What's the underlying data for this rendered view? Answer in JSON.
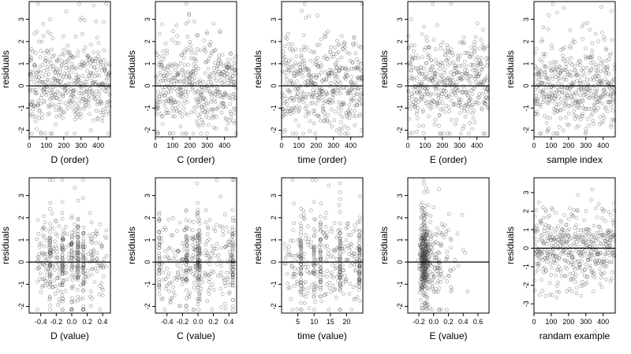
{
  "colors": {
    "point_stroke": "#444444",
    "frame": "#000000",
    "background": "#ffffff"
  },
  "chart_data": [
    {
      "type": "scatter",
      "xlabel": "D (order)",
      "ylabel": "residuals",
      "xlim": [
        0,
        470
      ],
      "ylim": [
        -2.3,
        3.8
      ],
      "xticks": [
        0,
        100,
        200,
        300,
        400
      ],
      "xticklabels": [
        "0",
        "100",
        "200",
        "300",
        "400"
      ],
      "yticks": [
        -2,
        -1,
        0,
        1,
        2,
        3
      ],
      "refline_y": 0,
      "pattern": {
        "kind": "order",
        "n": 470,
        "seed": 11
      }
    },
    {
      "type": "scatter",
      "xlabel": "C (order)",
      "ylabel": "residuals",
      "xlim": [
        0,
        470
      ],
      "ylim": [
        -2.3,
        3.8
      ],
      "xticks": [
        0,
        100,
        200,
        300,
        400
      ],
      "xticklabels": [
        "0",
        "100",
        "200",
        "300",
        "400"
      ],
      "yticks": [
        -2,
        -1,
        0,
        1,
        2,
        3
      ],
      "refline_y": 0,
      "pattern": {
        "kind": "order",
        "n": 470,
        "seed": 23
      }
    },
    {
      "type": "scatter",
      "xlabel": "time (order)",
      "ylabel": "residuals",
      "xlim": [
        0,
        470
      ],
      "ylim": [
        -2.3,
        3.8
      ],
      "xticks": [
        0,
        100,
        200,
        300,
        400
      ],
      "xticklabels": [
        "0",
        "100",
        "200",
        "300",
        "400"
      ],
      "yticks": [
        -2,
        -1,
        0,
        1,
        2,
        3
      ],
      "refline_y": 0,
      "pattern": {
        "kind": "order",
        "n": 470,
        "seed": 37
      }
    },
    {
      "type": "scatter",
      "xlabel": "E (order)",
      "ylabel": "residuals",
      "xlim": [
        0,
        470
      ],
      "ylim": [
        -2.3,
        3.8
      ],
      "xticks": [
        0,
        100,
        200,
        300,
        400
      ],
      "xticklabels": [
        "0",
        "100",
        "200",
        "300",
        "400"
      ],
      "yticks": [
        -2,
        -1,
        0,
        1,
        2,
        3
      ],
      "refline_y": 0,
      "pattern": {
        "kind": "order",
        "n": 470,
        "seed": 41
      }
    },
    {
      "type": "scatter",
      "xlabel": "sample index",
      "ylabel": "residuals",
      "xlim": [
        0,
        470
      ],
      "ylim": [
        -2.3,
        3.8
      ],
      "xticks": [
        0,
        100,
        200,
        300,
        400
      ],
      "xticklabels": [
        "0",
        "100",
        "200",
        "300",
        "400"
      ],
      "yticks": [
        -2,
        -1,
        0,
        1,
        2,
        3
      ],
      "refline_y": 0,
      "pattern": {
        "kind": "order",
        "n": 470,
        "seed": 53
      }
    },
    {
      "type": "scatter",
      "xlabel": "D (value)",
      "ylabel": "residuals",
      "xlim": [
        -0.55,
        0.5
      ],
      "ylim": [
        -2.3,
        3.8
      ],
      "xticks": [
        -0.4,
        -0.2,
        0.0,
        0.2,
        0.4
      ],
      "xticklabels": [
        "-0.4",
        "-0.2",
        "0.0",
        "0.2",
        "0.4"
      ],
      "yticks": [
        -2,
        -1,
        0,
        1,
        2,
        3
      ],
      "refline_y": 0,
      "pattern": {
        "kind": "spread",
        "n": 470,
        "seed": 61,
        "center": 0.0,
        "width": 0.45,
        "stripes": [
          -0.28,
          -0.12,
          0.0,
          0.08,
          0.15
        ]
      }
    },
    {
      "type": "scatter",
      "xlabel": "C (value)",
      "ylabel": "residuals",
      "xlim": [
        -0.55,
        0.5
      ],
      "ylim": [
        -2.3,
        3.8
      ],
      "xticks": [
        -0.4,
        -0.2,
        0.0,
        0.2,
        0.4
      ],
      "xticklabels": [
        "-0.4",
        "-0.2",
        "0.0",
        "0.2",
        "0.4"
      ],
      "yticks": [
        -2,
        -1,
        0,
        1,
        2,
        3
      ],
      "refline_y": 0,
      "pattern": {
        "kind": "spread",
        "n": 470,
        "seed": 71,
        "center": 0.0,
        "width": 0.48,
        "stripes": [
          -0.5,
          -0.15,
          0.0,
          0.02,
          0.45
        ]
      }
    },
    {
      "type": "scatter",
      "xlabel": "time (value)",
      "ylabel": "residuals",
      "xlim": [
        0,
        25
      ],
      "ylim": [
        -2.3,
        3.8
      ],
      "xticks": [
        5,
        10,
        15,
        20
      ],
      "xticklabels": [
        "5",
        "10",
        "15",
        "20"
      ],
      "yticks": [
        -2,
        -1,
        0,
        1,
        2,
        3
      ],
      "refline_y": 0,
      "pattern": {
        "kind": "spread",
        "n": 470,
        "seed": 83,
        "center": 12.5,
        "width": 11.5,
        "stripes": [
          6,
          10,
          12,
          18,
          24
        ]
      }
    },
    {
      "type": "scatter",
      "xlabel": "E (value)",
      "ylabel": "residuals",
      "xlim": [
        -0.35,
        0.75
      ],
      "ylim": [
        -2.3,
        3.8
      ],
      "xticks": [
        -0.2,
        0.0,
        0.2,
        0.4,
        0.6
      ],
      "xticklabels": [
        "-0.2",
        "0.0",
        "0.2",
        "0.4",
        "0.6"
      ],
      "yticks": [
        -2,
        -1,
        0,
        1,
        2,
        3
      ],
      "refline_y": 0,
      "pattern": {
        "kind": "skew",
        "n": 470,
        "seed": 97,
        "peak": -0.13
      }
    },
    {
      "type": "scatter",
      "xlabel": "randam example",
      "ylabel": "residuals",
      "xlim": [
        0,
        470
      ],
      "ylim": [
        -3.5,
        3.8
      ],
      "xticks": [
        0,
        100,
        200,
        300,
        400
      ],
      "xticklabels": [
        "0",
        "100",
        "200",
        "300",
        "400"
      ],
      "yticks": [
        -3,
        -2,
        -1,
        0,
        1,
        2,
        3
      ],
      "refline_y": 0,
      "pattern": {
        "kind": "normal",
        "n": 470,
        "seed": 101
      }
    }
  ]
}
